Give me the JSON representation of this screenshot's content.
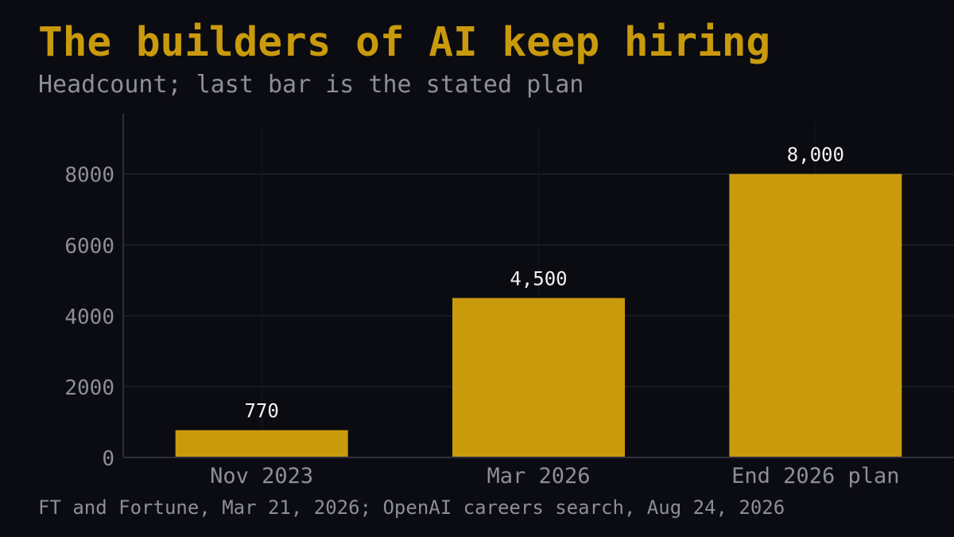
{
  "header": {
    "title": "The builders of AI keep hiring",
    "subtitle": "Headcount; last bar is the stated plan"
  },
  "footer": {
    "source": "FT and Fortune, Mar 21, 2026; OpenAI careers search, Aug 24, 2026"
  },
  "colors": {
    "background": "#0b0b12",
    "bar": "#c99a0c",
    "title": "#c99a0c",
    "muted_text": "#8e8e9a",
    "data_label": "#f2f2f2",
    "grid": "#1f1f2a",
    "axis": "#2e2e3c"
  },
  "chart_data": {
    "type": "bar",
    "title": "The builders of AI keep hiring",
    "subtitle": "Headcount; last bar is the stated plan",
    "categories": [
      "Nov 2023",
      "Mar 2026",
      "End 2026 plan"
    ],
    "values": [
      770,
      4500,
      8000
    ],
    "data_labels": [
      "770",
      "4,500",
      "8,000"
    ],
    "y_ticks": [
      0,
      2000,
      4000,
      6000,
      8000
    ],
    "y_tick_labels": [
      "0",
      "2000",
      "4000",
      "6000",
      "8000"
    ],
    "ylim": [
      0,
      9700
    ],
    "xlabel": "",
    "ylabel": "",
    "grid": true,
    "legend": "none"
  }
}
